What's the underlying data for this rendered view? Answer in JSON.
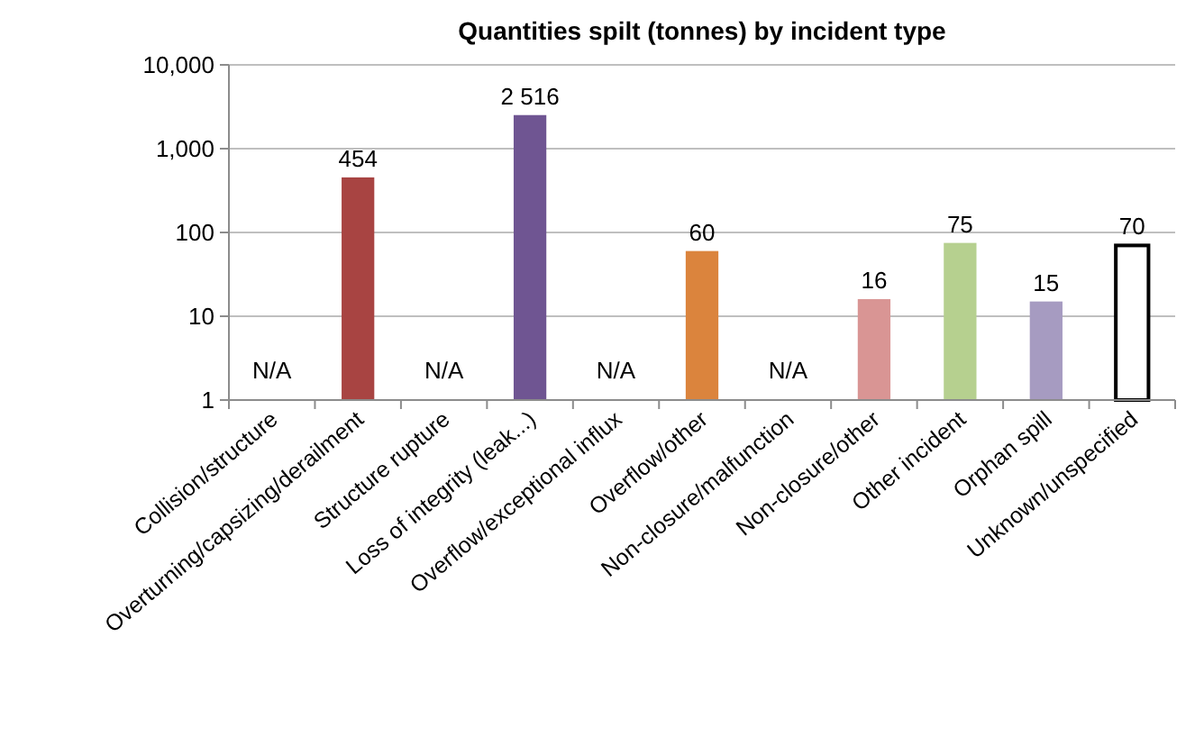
{
  "chart_data": {
    "type": "bar",
    "title": "Quantities spilt (tonnes) by incident type",
    "categories": [
      "Collision/structure",
      "Overturning/capsizing/derailment",
      "Structure rupture",
      "Loss of integrity (leak...)",
      "Overflow/exceptional influx",
      "Overflow/other",
      "Non-closure/malfunction",
      "Non-closure/other",
      "Other incident",
      "Orphan spill",
      "Unknown/unspecified"
    ],
    "values": [
      null,
      454,
      null,
      2516,
      null,
      60,
      null,
      16,
      75,
      15,
      70
    ],
    "value_labels": [
      "N/A",
      "454",
      "N/A",
      "2 516",
      "N/A",
      "60",
      "N/A",
      "16",
      "75",
      "15",
      "70"
    ],
    "colors": [
      null,
      "#a84442",
      null,
      "#6f5592",
      null,
      "#db843d",
      null,
      "#d99594",
      "#b6d08f",
      "#a69bc1",
      "#ffffff"
    ],
    "log": true,
    "ylim": [
      1,
      10000
    ],
    "yticks": [
      1,
      10,
      100,
      {
        "value": 1000,
        "label": "1,000"
      },
      {
        "value": 10000,
        "label": "10,000"
      }
    ],
    "grid": "y"
  }
}
